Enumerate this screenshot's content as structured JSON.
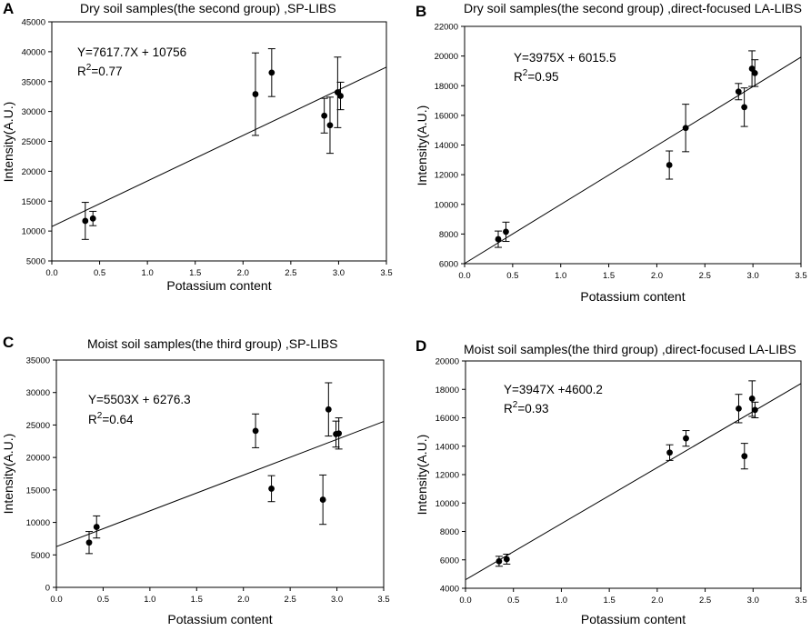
{
  "chart_data": [
    {
      "type": "scatter",
      "panel_letter": "A",
      "title": "Dry soil samples(the second group) ,SP-LIBS",
      "xlabel": "Potassium content",
      "ylabel": "Intensity(A.U.)",
      "xlim": [
        0.0,
        3.5
      ],
      "ylim": [
        5000,
        45000
      ],
      "xticks": [
        0.0,
        0.5,
        1.0,
        1.5,
        2.0,
        2.5,
        3.0,
        3.5
      ],
      "xtick_labels": [
        "0.0",
        "0.5",
        "1.0",
        "1.5",
        "2.0",
        "2.5",
        "3.0",
        "3.5"
      ],
      "yticks": [
        5000,
        10000,
        15000,
        20000,
        25000,
        30000,
        35000,
        40000,
        45000
      ],
      "ytick_labels": [
        "5000",
        "10000",
        "15000",
        "20000",
        "25000",
        "30000",
        "35000",
        "40000",
        "45000"
      ],
      "equation": "Y=7617.7X + 10756",
      "r2_prefix": "R",
      "r2_sup": "2",
      "r2_value": "=0.77",
      "fit": {
        "slope": 7617.7,
        "intercept": 10756
      },
      "points": [
        {
          "x": 0.35,
          "y": 11700,
          "err_low": 3100,
          "err_high": 3100
        },
        {
          "x": 0.43,
          "y": 12100,
          "err_low": 1200,
          "err_high": 1200
        },
        {
          "x": 2.13,
          "y": 32900,
          "err_low": 6900,
          "err_high": 6900
        },
        {
          "x": 2.3,
          "y": 36500,
          "err_low": 4000,
          "err_high": 4000
        },
        {
          "x": 2.85,
          "y": 29300,
          "err_low": 2900,
          "err_high": 2900
        },
        {
          "x": 2.91,
          "y": 27700,
          "err_low": 4700,
          "err_high": 4700
        },
        {
          "x": 2.99,
          "y": 33200,
          "err_low": 5900,
          "err_high": 5900
        },
        {
          "x": 3.02,
          "y": 32600,
          "err_low": 2300,
          "err_high": 2300
        }
      ]
    },
    {
      "type": "scatter",
      "panel_letter": "B",
      "title": "Dry soil samples(the second group) ,direct-focused LA-LIBS",
      "xlabel": "Potassium content",
      "ylabel": "Intensity(A.U.)",
      "xlim": [
        0.0,
        3.5
      ],
      "ylim": [
        6000,
        22000
      ],
      "xticks": [
        0.0,
        0.5,
        1.0,
        1.5,
        2.0,
        2.5,
        3.0,
        3.5
      ],
      "xtick_labels": [
        "0.0",
        "0.5",
        "1.0",
        "1.5",
        "2.0",
        "2.5",
        "3.0",
        "3.5"
      ],
      "yticks": [
        6000,
        8000,
        10000,
        12000,
        14000,
        16000,
        18000,
        20000,
        22000
      ],
      "ytick_labels": [
        "6000",
        "8000",
        "10000",
        "12000",
        "14000",
        "16000",
        "18000",
        "20000",
        "22000"
      ],
      "equation": "Y=3975X + 6015.5",
      "r2_prefix": "R",
      "r2_sup": "2",
      "r2_value": "=0.95",
      "fit": {
        "slope": 3975,
        "intercept": 6015.5
      },
      "points": [
        {
          "x": 0.35,
          "y": 7650,
          "err_low": 550,
          "err_high": 550
        },
        {
          "x": 0.43,
          "y": 8150,
          "err_low": 650,
          "err_high": 650
        },
        {
          "x": 2.13,
          "y": 12650,
          "err_low": 950,
          "err_high": 950
        },
        {
          "x": 2.3,
          "y": 15150,
          "err_low": 1600,
          "err_high": 1600
        },
        {
          "x": 2.85,
          "y": 17600,
          "err_low": 550,
          "err_high": 550
        },
        {
          "x": 2.91,
          "y": 16550,
          "err_low": 1300,
          "err_high": 1300
        },
        {
          "x": 2.99,
          "y": 19150,
          "err_low": 1200,
          "err_high": 1200
        },
        {
          "x": 3.02,
          "y": 18850,
          "err_low": 900,
          "err_high": 900
        }
      ]
    },
    {
      "type": "scatter",
      "panel_letter": "C",
      "title": "Moist soil samples(the third group) ,SP-LIBS",
      "xlabel": "Potassium content",
      "ylabel": "Intensity(A.U.)",
      "xlim": [
        0.0,
        3.5
      ],
      "ylim": [
        0,
        35000
      ],
      "xticks": [
        0.0,
        0.5,
        1.0,
        1.5,
        2.0,
        2.5,
        3.0,
        3.5
      ],
      "xtick_labels": [
        "0.0",
        "0.5",
        "1.0",
        "1.5",
        "2.0",
        "2.5",
        "3.0",
        "3.5"
      ],
      "yticks": [
        0,
        5000,
        10000,
        15000,
        20000,
        25000,
        30000,
        35000
      ],
      "ytick_labels": [
        "0",
        "5000",
        "10000",
        "15000",
        "20000",
        "25000",
        "30000",
        "35000"
      ],
      "equation": "Y=5503X + 6276.3",
      "r2_prefix": "R",
      "r2_sup": "2",
      "r2_value": "=0.64",
      "fit": {
        "slope": 5503,
        "intercept": 6276.3
      },
      "points": [
        {
          "x": 0.35,
          "y": 6900,
          "err_low": 1700,
          "err_high": 1700
        },
        {
          "x": 0.43,
          "y": 9300,
          "err_low": 1700,
          "err_high": 1700
        },
        {
          "x": 2.13,
          "y": 24100,
          "err_low": 2600,
          "err_high": 2600
        },
        {
          "x": 2.3,
          "y": 15200,
          "err_low": 2000,
          "err_high": 2000
        },
        {
          "x": 2.85,
          "y": 13500,
          "err_low": 3800,
          "err_high": 3800
        },
        {
          "x": 2.91,
          "y": 27400,
          "err_low": 4100,
          "err_high": 4100
        },
        {
          "x": 2.99,
          "y": 23600,
          "err_low": 2000,
          "err_high": 2000
        },
        {
          "x": 3.02,
          "y": 23700,
          "err_low": 2400,
          "err_high": 2400
        }
      ]
    },
    {
      "type": "scatter",
      "panel_letter": "D",
      "title": "Moist soil samples(the third group) ,direct-focused LA-LIBS",
      "xlabel": "Potassium content",
      "ylabel": "Intensity(A.U.)",
      "xlim": [
        0.0,
        3.5
      ],
      "ylim": [
        4000,
        20000
      ],
      "xticks": [
        0.0,
        0.5,
        1.0,
        1.5,
        2.0,
        2.5,
        3.0,
        3.5
      ],
      "xtick_labels": [
        "0.0",
        "0.5",
        "1.0",
        "1.5",
        "2.0",
        "2.5",
        "3.0",
        "3.5"
      ],
      "yticks": [
        4000,
        6000,
        8000,
        10000,
        12000,
        14000,
        16000,
        18000,
        20000
      ],
      "ytick_labels": [
        "4000",
        "6000",
        "8000",
        "10000",
        "12000",
        "14000",
        "16000",
        "18000",
        "20000"
      ],
      "equation": "Y=3947X +4600.2",
      "r2_prefix": "R",
      "r2_sup": "2",
      "r2_value": "=0.93",
      "fit": {
        "slope": 3947,
        "intercept": 4600.2
      },
      "points": [
        {
          "x": 0.35,
          "y": 5900,
          "err_low": 350,
          "err_high": 350
        },
        {
          "x": 0.43,
          "y": 6050,
          "err_low": 350,
          "err_high": 350
        },
        {
          "x": 2.13,
          "y": 13550,
          "err_low": 550,
          "err_high": 550
        },
        {
          "x": 2.3,
          "y": 14550,
          "err_low": 550,
          "err_high": 550
        },
        {
          "x": 2.85,
          "y": 16650,
          "err_low": 1000,
          "err_high": 1000
        },
        {
          "x": 2.91,
          "y": 13300,
          "err_low": 900,
          "err_high": 900
        },
        {
          "x": 2.99,
          "y": 17350,
          "err_low": 1250,
          "err_high": 1250
        },
        {
          "x": 3.02,
          "y": 16550,
          "err_low": 550,
          "err_high": 550
        }
      ]
    }
  ]
}
